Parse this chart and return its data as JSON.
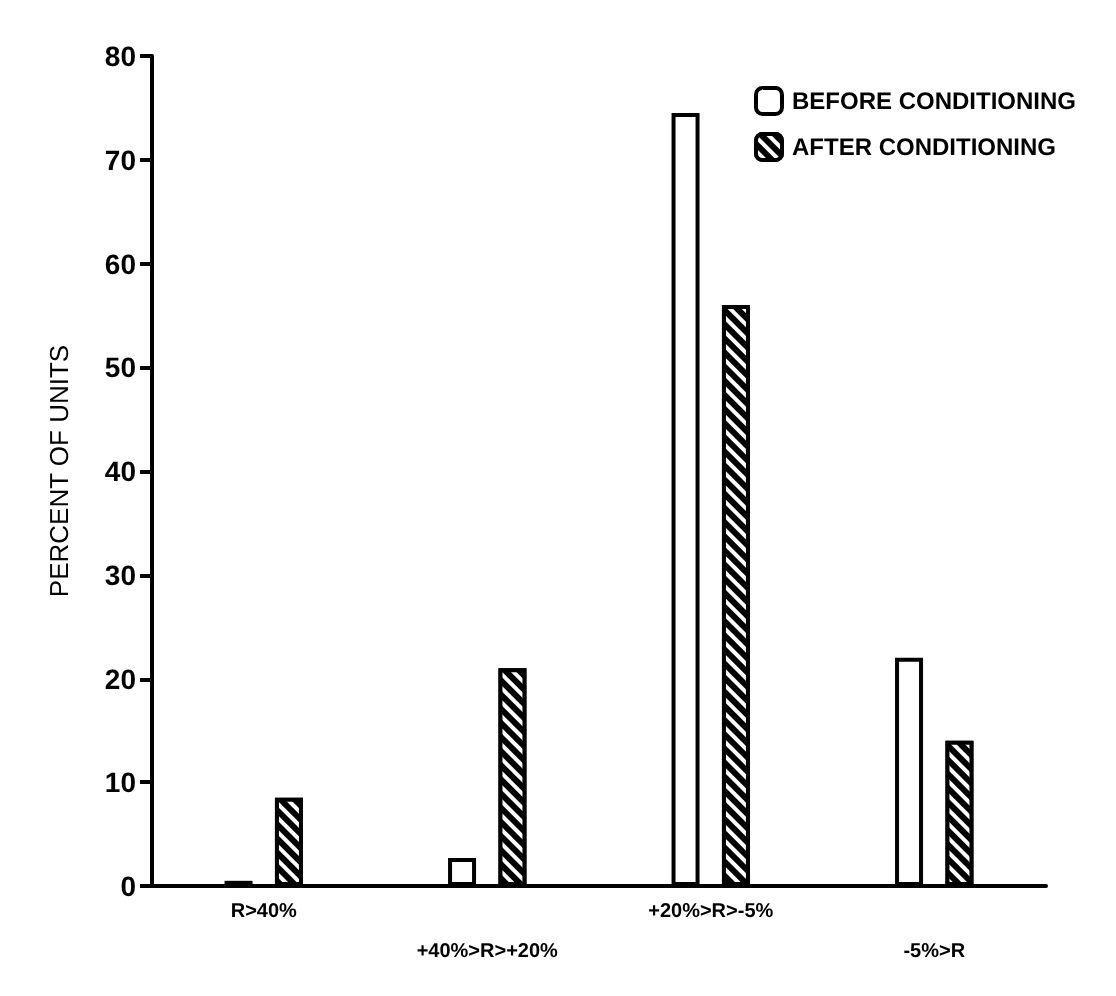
{
  "chart_data": {
    "type": "bar",
    "ylabel": "PERCENT OF UNITS",
    "categories": [
      "R>40%",
      "+40%>R>+20%",
      "+20%>R>-5%",
      "-5%>R"
    ],
    "series": [
      {
        "name": "BEFORE CONDITIONING",
        "color": "#ffffff",
        "values": [
          0.5,
          2.7,
          74.5,
          22
        ]
      },
      {
        "name": "AFTER CONDITIONING",
        "color": "#000000",
        "values": [
          8.5,
          21,
          56,
          14
        ]
      }
    ],
    "ylim": [
      0,
      80
    ],
    "yticks": [
      0,
      10,
      20,
      30,
      40,
      50,
      60,
      70,
      80
    ],
    "grid": false,
    "legend": "top right"
  }
}
